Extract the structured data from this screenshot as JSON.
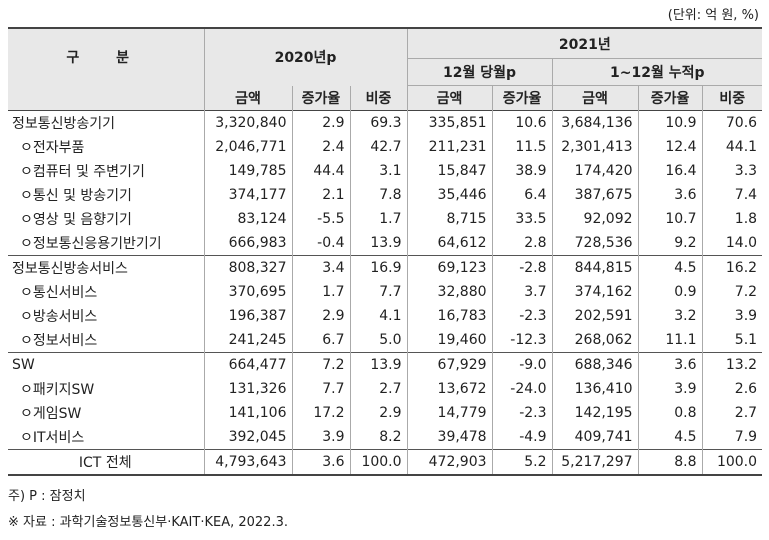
{
  "unit_note": "(단위: 억 원, %)",
  "header": {
    "category": "구 분",
    "y2020": "2020년p",
    "y2021": "2021년",
    "dec": "12월 당월p",
    "cum": "1~12월 누적p",
    "cols": [
      "금액",
      "증가율",
      "비중",
      "금액",
      "증가율",
      "금액",
      "증가율",
      "비중"
    ]
  },
  "rows": [
    {
      "label": "정보통신방송기기",
      "cells": [
        "3,320,840",
        "2.9",
        "69.3",
        "335,851",
        "10.6",
        "3,684,136",
        "10.9",
        "70.6"
      ]
    },
    {
      "label": "ㅇ전자부품",
      "cells": [
        "2,046,771",
        "2.4",
        "42.7",
        "211,231",
        "11.5",
        "2,301,413",
        "12.4",
        "44.1"
      ]
    },
    {
      "label": "ㅇ컴퓨터 및 주변기기",
      "cells": [
        "149,785",
        "44.4",
        "3.1",
        "15,847",
        "38.9",
        "174,420",
        "16.4",
        "3.3"
      ]
    },
    {
      "label": "ㅇ통신 및 방송기기",
      "cells": [
        "374,177",
        "2.1",
        "7.8",
        "35,446",
        "6.4",
        "387,675",
        "3.6",
        "7.4"
      ]
    },
    {
      "label": "ㅇ영상 및 음향기기",
      "cells": [
        "83,124",
        "-5.5",
        "1.7",
        "8,715",
        "33.5",
        "92,092",
        "10.7",
        "1.8"
      ]
    },
    {
      "label": "ㅇ정보통신응용기반기기",
      "cells": [
        "666,983",
        "-0.4",
        "13.9",
        "64,612",
        "2.8",
        "728,536",
        "9.2",
        "14.0"
      ]
    },
    {
      "label": "정보통신방송서비스",
      "cells": [
        "808,327",
        "3.4",
        "16.9",
        "69,123",
        "-2.8",
        "844,815",
        "4.5",
        "16.2"
      ]
    },
    {
      "label": "ㅇ통신서비스",
      "cells": [
        "370,695",
        "1.7",
        "7.7",
        "32,880",
        "3.7",
        "374,162",
        "0.9",
        "7.2"
      ]
    },
    {
      "label": "ㅇ방송서비스",
      "cells": [
        "196,387",
        "2.9",
        "4.1",
        "16,783",
        "-2.3",
        "202,591",
        "3.2",
        "3.9"
      ]
    },
    {
      "label": "ㅇ정보서비스",
      "cells": [
        "241,245",
        "6.7",
        "5.0",
        "19,460",
        "-12.3",
        "268,062",
        "11.1",
        "5.1"
      ]
    },
    {
      "label": "SW",
      "cells": [
        "664,477",
        "7.2",
        "13.9",
        "67,929",
        "-9.0",
        "688,346",
        "3.6",
        "13.2"
      ]
    },
    {
      "label": "ㅇ패키지SW",
      "cells": [
        "131,326",
        "7.7",
        "2.7",
        "13,672",
        "-24.0",
        "136,410",
        "3.9",
        "2.6"
      ]
    },
    {
      "label": "ㅇ게임SW",
      "cells": [
        "141,106",
        "17.2",
        "2.9",
        "14,779",
        "-2.3",
        "142,195",
        "0.8",
        "2.7"
      ]
    },
    {
      "label": "ㅇIT서비스",
      "cells": [
        "392,045",
        "3.9",
        "8.2",
        "39,478",
        "-4.9",
        "409,741",
        "4.5",
        "7.9"
      ]
    },
    {
      "label": "ICT 전체",
      "cells": [
        "4,793,643",
        "3.6",
        "100.0",
        "472,903",
        "5.2",
        "5,217,297",
        "8.8",
        "100.0"
      ]
    }
  ],
  "notes": {
    "n1": "주) P : 잠정치",
    "n2": "※ 자료 : 과학기술정보통신부·KAIT·KEA, 2022.3."
  }
}
